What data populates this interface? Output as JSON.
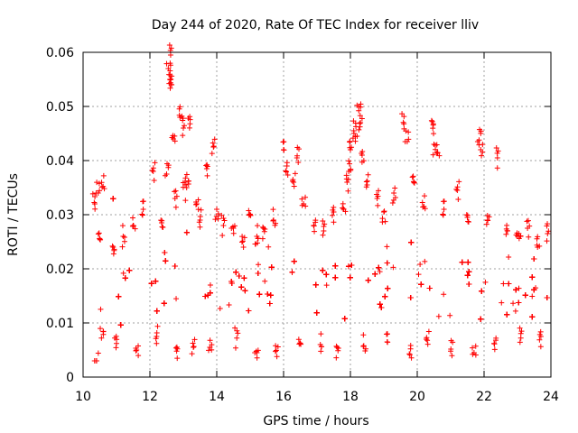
{
  "chart_data": {
    "type": "scatter",
    "title": "Day 244 of 2020, Rate Of TEC Index for receiver lliv",
    "xlabel": "GPS time / hours",
    "ylabel": "ROTI / TECUs",
    "xlim": [
      10,
      24
    ],
    "ylim": [
      0,
      0.06
    ],
    "xticks": [
      10,
      12,
      14,
      16,
      18,
      20,
      22,
      24
    ],
    "xtick_labels": [
      "10",
      "12",
      "14",
      "16",
      "18",
      "20",
      "22",
      "24"
    ],
    "yticks": [
      0,
      0.01,
      0.02,
      0.03,
      0.04,
      0.05,
      0.06
    ],
    "ytick_labels": [
      "0",
      "0.01",
      "0.02",
      "0.03",
      "0.04",
      "0.05",
      "0.06"
    ],
    "grid": true,
    "marker": "+",
    "color": "#ff0000",
    "series": [
      {
        "name": "ROTI",
        "x": [
          10.35,
          10.45,
          10.5,
          10.6,
          10.9,
          11.2,
          11.5,
          11.8,
          12.1,
          12.35,
          12.5,
          12.55,
          12.6,
          12.62,
          12.65,
          12.7,
          12.75,
          12.9,
          13.0,
          13.05,
          13.1,
          13.2,
          13.4,
          13.5,
          13.7,
          13.9,
          14.0,
          14.2,
          14.5,
          14.8,
          15.0,
          15.2,
          15.4,
          15.7,
          16.0,
          16.1,
          16.3,
          16.4,
          16.6,
          16.9,
          17.2,
          17.5,
          17.8,
          17.9,
          17.95,
          18.0,
          18.1,
          18.2,
          18.25,
          18.3,
          18.35,
          18.5,
          18.8,
          19.0,
          19.3,
          19.6,
          19.7,
          19.9,
          20.2,
          20.45,
          20.5,
          20.6,
          20.8,
          21.2,
          21.5,
          21.85,
          21.9,
          22.1,
          22.4,
          22.7,
          23.0,
          23.3,
          23.6,
          23.9,
          10.4,
          10.55,
          11.0,
          11.6,
          12.2,
          12.8,
          13.3,
          13.8,
          14.6,
          15.2,
          15.8,
          16.5,
          17.1,
          17.6,
          18.4,
          19.1,
          19.8,
          20.3,
          21.0,
          21.7,
          22.3,
          23.1,
          23.7
        ],
        "y": [
          0.032,
          0.034,
          0.0255,
          0.0352,
          0.024,
          0.026,
          0.028,
          0.031,
          0.038,
          0.0285,
          0.0375,
          0.057,
          0.055,
          0.0595,
          0.054,
          0.044,
          0.033,
          0.048,
          0.046,
          0.036,
          0.035,
          0.0468,
          0.032,
          0.029,
          0.0385,
          0.0425,
          0.031,
          0.028,
          0.0275,
          0.024,
          0.03,
          0.026,
          0.0275,
          0.029,
          0.042,
          0.039,
          0.036,
          0.0405,
          0.032,
          0.028,
          0.027,
          0.0305,
          0.031,
          0.036,
          0.038,
          0.042,
          0.0455,
          0.0445,
          0.0492,
          0.047,
          0.041,
          0.0355,
          0.033,
          0.0305,
          0.034,
          0.0468,
          0.0435,
          0.036,
          0.0315,
          0.0472,
          0.043,
          0.0415,
          0.031,
          0.0345,
          0.0295,
          0.0438,
          0.042,
          0.029,
          0.0405,
          0.027,
          0.026,
          0.0275,
          0.024,
          0.0265,
          0.003,
          0.0072,
          0.0062,
          0.005,
          0.0075,
          0.0048,
          0.0055,
          0.0068,
          0.0072,
          0.0045,
          0.0038,
          0.0062,
          0.006,
          0.0055,
          0.0058,
          0.0065,
          0.0052,
          0.0068,
          0.0048,
          0.0045,
          0.0062,
          0.0072,
          0.0075
        ]
      }
    ],
    "dense_band": {
      "note": "bulk of points",
      "x_range": [
        10.3,
        24.0
      ],
      "y_typical_range": [
        0.007,
        0.026
      ],
      "y_center": 0.016
    }
  }
}
